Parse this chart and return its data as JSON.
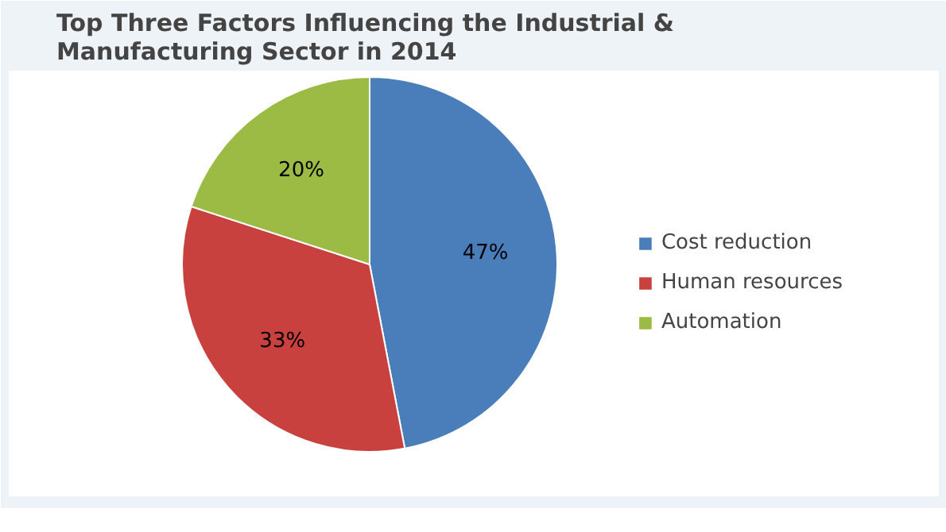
{
  "chart_data": {
    "type": "pie",
    "title": "Top Three Factors Influencing the Industrial &\nManufacturing Sector in 2014",
    "categories": [
      "Cost reduction",
      "Human resources",
      "Automation"
    ],
    "values": [
      47,
      33,
      20
    ],
    "colors": [
      "#4a7ebb",
      "#c9413e",
      "#9bbb45"
    ],
    "value_labels": [
      "47%",
      "33%",
      "20%"
    ],
    "legend": "right"
  }
}
